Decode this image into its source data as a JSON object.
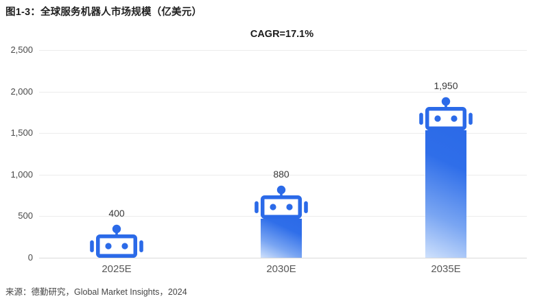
{
  "header": {
    "title": "图1-3：全球服务机器人市场规模（亿美元）"
  },
  "footer": {
    "source": "来源：德勤研究，Global Market Insights，2024"
  },
  "colors": {
    "robot_blue": "#2b6ae8",
    "bar_gradient_top": "#2b6ae8",
    "bar_gradient_bottom": "#cfe1fc",
    "grid": "#ececec",
    "baseline": "#d9d9d9"
  },
  "chart_data": {
    "type": "bar",
    "title": "全球服务机器人市场规模（亿美元）",
    "annotation": "CAGR=17.1%",
    "categories": [
      "2025E",
      "2030E",
      "2035E"
    ],
    "values": [
      400,
      880,
      1950
    ],
    "value_labels": [
      "400",
      "880",
      "1,950"
    ],
    "xlabel": "",
    "ylabel": "",
    "ylim": [
      0,
      2500
    ],
    "yticks": [
      0,
      500,
      1000,
      1500,
      2000,
      2500
    ],
    "ytick_labels": [
      "0",
      "500",
      "1,000",
      "1,500",
      "2,000",
      "2,500"
    ],
    "grid": true,
    "legend": "none",
    "bar_icon": "robot-head"
  }
}
